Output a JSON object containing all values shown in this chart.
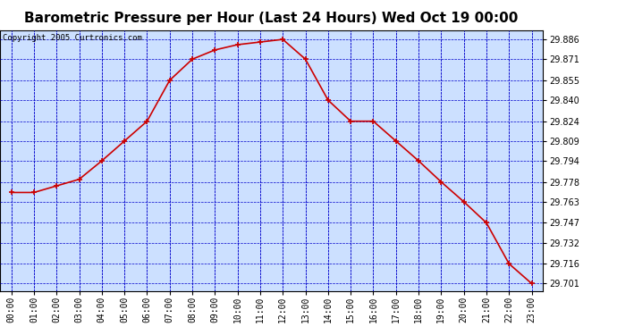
{
  "title": "Barometric Pressure per Hour (Last 24 Hours) Wed Oct 19 00:00",
  "copyright": "Copyright 2005 Curtronics.com",
  "hours": [
    "00:00",
    "01:00",
    "02:00",
    "03:00",
    "04:00",
    "05:00",
    "06:00",
    "07:00",
    "08:00",
    "09:00",
    "10:00",
    "11:00",
    "12:00",
    "13:00",
    "14:00",
    "15:00",
    "16:00",
    "17:00",
    "18:00",
    "19:00",
    "20:00",
    "21:00",
    "22:00",
    "23:00"
  ],
  "values": [
    29.77,
    29.77,
    29.775,
    29.78,
    29.794,
    29.809,
    29.824,
    29.855,
    29.871,
    29.878,
    29.882,
    29.884,
    29.886,
    29.871,
    29.84,
    29.824,
    29.824,
    29.809,
    29.794,
    29.778,
    29.763,
    29.747,
    29.716,
    29.701
  ],
  "yticks": [
    29.886,
    29.871,
    29.855,
    29.84,
    29.824,
    29.809,
    29.794,
    29.778,
    29.763,
    29.747,
    29.732,
    29.716,
    29.701
  ],
  "ymin": 29.695,
  "ymax": 29.893,
  "line_color": "#cc0000",
  "marker_color": "#cc0000",
  "bg_color": "#cce0ff",
  "outer_bg": "#ffffff",
  "grid_color": "#0000cc",
  "title_fontsize": 11,
  "tick_fontsize": 7,
  "copyright_fontsize": 6.5
}
